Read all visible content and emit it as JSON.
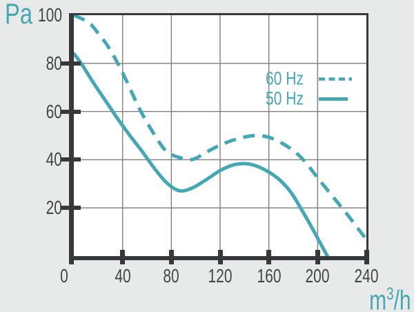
{
  "colors": {
    "accent": "#45a7b3",
    "axis": "#38383a",
    "grid": "#7d7d7d",
    "tick_text": "#454547",
    "page_background": "#e8e9e9",
    "plot_background": "#ffffff"
  },
  "y_axis": {
    "unit": "Pa"
  },
  "x_axis": {
    "unit_base": "m",
    "unit_sup": "3",
    "unit_rest": "/h"
  },
  "legend": [
    {
      "label": "60 Hz",
      "style": "dashed"
    },
    {
      "label": "50 Hz",
      "style": "solid"
    }
  ],
  "chart_data": {
    "type": "line",
    "title": "",
    "xlabel": "m3/h",
    "ylabel": "Pa",
    "xlim": [
      0,
      240
    ],
    "ylim": [
      0,
      100
    ],
    "x_ticks": [
      0,
      40,
      80,
      120,
      160,
      200,
      240
    ],
    "y_ticks": [
      100,
      80,
      60,
      40,
      20
    ],
    "grid": true,
    "legend_position": "upper-right-inside",
    "series": [
      {
        "name": "60 Hz",
        "line_style": "dashed",
        "points": [
          [
            0,
            100
          ],
          [
            12,
            97
          ],
          [
            20,
            92.5
          ],
          [
            30,
            85.5
          ],
          [
            42,
            74
          ],
          [
            54,
            61
          ],
          [
            66,
            50.5
          ],
          [
            76,
            43.5
          ],
          [
            88,
            40.7
          ],
          [
            98,
            40.2
          ],
          [
            110,
            43.5
          ],
          [
            122,
            46.5
          ],
          [
            135,
            48.8
          ],
          [
            148,
            50
          ],
          [
            160,
            49.3
          ],
          [
            172,
            46.5
          ],
          [
            182,
            43
          ],
          [
            190,
            39
          ],
          [
            200,
            32.5
          ],
          [
            212,
            25
          ],
          [
            224,
            17.5
          ],
          [
            233,
            11.5
          ],
          [
            240,
            7
          ]
        ]
      },
      {
        "name": "50 Hz",
        "line_style": "solid",
        "points": [
          [
            0,
            84
          ],
          [
            6,
            80
          ],
          [
            16,
            72
          ],
          [
            26,
            64.5
          ],
          [
            36,
            57
          ],
          [
            46,
            50
          ],
          [
            56,
            43.5
          ],
          [
            66,
            36.5
          ],
          [
            76,
            30.5
          ],
          [
            86,
            27.2
          ],
          [
            96,
            28
          ],
          [
            108,
            31.5
          ],
          [
            120,
            35.5
          ],
          [
            132,
            38
          ],
          [
            144,
            38.2
          ],
          [
            156,
            36
          ],
          [
            168,
            32
          ],
          [
            178,
            26.5
          ],
          [
            186,
            20
          ],
          [
            194,
            13
          ],
          [
            201,
            6.5
          ],
          [
            208,
            0
          ]
        ]
      }
    ]
  }
}
